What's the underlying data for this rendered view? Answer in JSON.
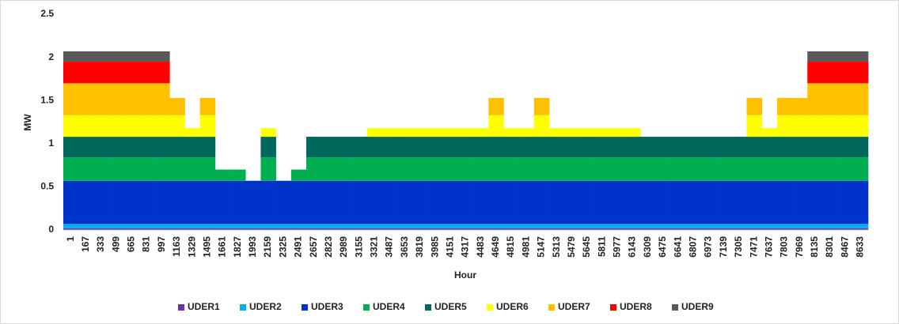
{
  "chart_data": {
    "type": "stacked_bar",
    "x_label": "Hour",
    "y_label": "MW",
    "categories": [
      "1",
      "167",
      "333",
      "499",
      "665",
      "831",
      "997",
      "1163",
      "1329",
      "1495",
      "1661",
      "1827",
      "1993",
      "2159",
      "2325",
      "2491",
      "2657",
      "2823",
      "2989",
      "3155",
      "3321",
      "3487",
      "3653",
      "3819",
      "3985",
      "4151",
      "4317",
      "4483",
      "4649",
      "4815",
      "4981",
      "5147",
      "5313",
      "5479",
      "5645",
      "5811",
      "5977",
      "6143",
      "6309",
      "6475",
      "6641",
      "6807",
      "6973",
      "7139",
      "7305",
      "7471",
      "7637",
      "7803",
      "7969",
      "8135",
      "8301",
      "8467",
      "8633"
    ],
    "ylim": [
      0,
      2.5
    ],
    "yticks": [
      0,
      0.5,
      1,
      1.5,
      2,
      2.5
    ],
    "grid": false,
    "legend": "bottom",
    "series": [
      {
        "name": "UDER1",
        "color": "#7030a0",
        "values": [
          0.02,
          0.02,
          0.02,
          0.02,
          0.02,
          0.02,
          0.02,
          0.02,
          0.02,
          0.02,
          0.02,
          0.02,
          0.02,
          0.02,
          0.02,
          0.02,
          0.02,
          0.02,
          0.02,
          0.02,
          0.02,
          0.02,
          0.02,
          0.02,
          0.02,
          0.02,
          0.02,
          0.02,
          0.02,
          0.02,
          0.02,
          0.02,
          0.02,
          0.02,
          0.02,
          0.02,
          0.02,
          0.02,
          0.02,
          0.02,
          0.02,
          0.02,
          0.02,
          0.02,
          0.02,
          0.02,
          0.02,
          0.02,
          0.02,
          0.02,
          0.02,
          0.02,
          0.02
        ]
      },
      {
        "name": "UDER2",
        "color": "#00b0f0",
        "values": [
          0.05,
          0.05,
          0.05,
          0.05,
          0.05,
          0.05,
          0.05,
          0.05,
          0.05,
          0.05,
          0.05,
          0.05,
          0.05,
          0.05,
          0.05,
          0.05,
          0.05,
          0.05,
          0.05,
          0.05,
          0.05,
          0.05,
          0.05,
          0.05,
          0.05,
          0.05,
          0.05,
          0.05,
          0.05,
          0.05,
          0.05,
          0.05,
          0.05,
          0.05,
          0.05,
          0.05,
          0.05,
          0.05,
          0.05,
          0.05,
          0.05,
          0.05,
          0.05,
          0.05,
          0.05,
          0.05,
          0.05,
          0.05,
          0.05,
          0.05,
          0.05,
          0.05,
          0.05
        ]
      },
      {
        "name": "UDER3",
        "color": "#0033cc",
        "values": [
          0.5,
          0.5,
          0.5,
          0.5,
          0.5,
          0.5,
          0.5,
          0.5,
          0.5,
          0.5,
          0.5,
          0.5,
          0.5,
          0.5,
          0.5,
          0.5,
          0.5,
          0.5,
          0.5,
          0.5,
          0.5,
          0.5,
          0.5,
          0.5,
          0.5,
          0.5,
          0.5,
          0.5,
          0.5,
          0.5,
          0.5,
          0.5,
          0.5,
          0.5,
          0.5,
          0.5,
          0.5,
          0.5,
          0.5,
          0.5,
          0.5,
          0.5,
          0.5,
          0.5,
          0.5,
          0.5,
          0.5,
          0.5,
          0.5,
          0.5,
          0.5,
          0.5,
          0.5
        ]
      },
      {
        "name": "UDER4",
        "color": "#00b050",
        "values": [
          0.27,
          0.27,
          0.27,
          0.27,
          0.27,
          0.27,
          0.27,
          0.27,
          0.27,
          0.27,
          0.13,
          0.13,
          0,
          0.27,
          0,
          0.13,
          0.27,
          0.27,
          0.27,
          0.27,
          0.27,
          0.27,
          0.27,
          0.27,
          0.27,
          0.27,
          0.27,
          0.27,
          0.27,
          0.27,
          0.27,
          0.27,
          0.27,
          0.27,
          0.27,
          0.27,
          0.27,
          0.27,
          0.27,
          0.27,
          0.27,
          0.27,
          0.27,
          0.27,
          0.27,
          0.27,
          0.27,
          0.27,
          0.27,
          0.27,
          0.27,
          0.27,
          0.27
        ]
      },
      {
        "name": "UDER5",
        "color": "#00695c",
        "values": [
          0.24,
          0.24,
          0.24,
          0.24,
          0.24,
          0.24,
          0.24,
          0.24,
          0.24,
          0.24,
          0,
          0,
          0,
          0.24,
          0,
          0,
          0.24,
          0.24,
          0.24,
          0.24,
          0.24,
          0.24,
          0.24,
          0.24,
          0.24,
          0.24,
          0.24,
          0.24,
          0.24,
          0.24,
          0.24,
          0.24,
          0.24,
          0.24,
          0.24,
          0.24,
          0.24,
          0.24,
          0.24,
          0.24,
          0.24,
          0.24,
          0.24,
          0.24,
          0.24,
          0.24,
          0.24,
          0.24,
          0.24,
          0.24,
          0.24,
          0.24,
          0.24
        ]
      },
      {
        "name": "UDER6",
        "color": "#ffff00",
        "values": [
          0.25,
          0.25,
          0.25,
          0.25,
          0.25,
          0.25,
          0.25,
          0.25,
          0.1,
          0.25,
          0,
          0,
          0,
          0.1,
          0,
          0,
          0,
          0,
          0,
          0,
          0.1,
          0.1,
          0.1,
          0.1,
          0.1,
          0.1,
          0.1,
          0.1,
          0.25,
          0.1,
          0.1,
          0.25,
          0.1,
          0.1,
          0.1,
          0.1,
          0.1,
          0.1,
          0,
          0,
          0,
          0,
          0,
          0,
          0,
          0.25,
          0.1,
          0.25,
          0.25,
          0.25,
          0.25,
          0.25,
          0.25
        ]
      },
      {
        "name": "UDER7",
        "color": "#ffc000",
        "values": [
          0.37,
          0.37,
          0.37,
          0.37,
          0.37,
          0.37,
          0.37,
          0.2,
          0,
          0.2,
          0,
          0,
          0,
          0,
          0,
          0,
          0,
          0,
          0,
          0,
          0,
          0,
          0,
          0,
          0,
          0,
          0,
          0,
          0.2,
          0,
          0,
          0.2,
          0,
          0,
          0,
          0,
          0,
          0,
          0,
          0,
          0,
          0,
          0,
          0,
          0,
          0.2,
          0,
          0.2,
          0.2,
          0.37,
          0.37,
          0.37,
          0.37
        ]
      },
      {
        "name": "UDER8",
        "color": "#ff0000",
        "values": [
          0.25,
          0.25,
          0.25,
          0.25,
          0.25,
          0.25,
          0.25,
          0,
          0,
          0,
          0,
          0,
          0,
          0,
          0,
          0,
          0,
          0,
          0,
          0,
          0,
          0,
          0,
          0,
          0,
          0,
          0,
          0,
          0,
          0,
          0,
          0,
          0,
          0,
          0,
          0,
          0,
          0,
          0,
          0,
          0,
          0,
          0,
          0,
          0,
          0,
          0,
          0,
          0,
          0.25,
          0.25,
          0.25,
          0.25
        ]
      },
      {
        "name": "UDER9",
        "color": "#595959",
        "values": [
          0.12,
          0.12,
          0.12,
          0.12,
          0.12,
          0.12,
          0.12,
          0,
          0,
          0,
          0,
          0,
          0,
          0,
          0,
          0,
          0,
          0,
          0,
          0,
          0,
          0,
          0,
          0,
          0,
          0,
          0,
          0,
          0,
          0,
          0,
          0,
          0,
          0,
          0,
          0,
          0,
          0,
          0,
          0,
          0,
          0,
          0,
          0,
          0,
          0,
          0,
          0,
          0,
          0.12,
          0.12,
          0.12,
          0.12
        ]
      }
    ]
  }
}
